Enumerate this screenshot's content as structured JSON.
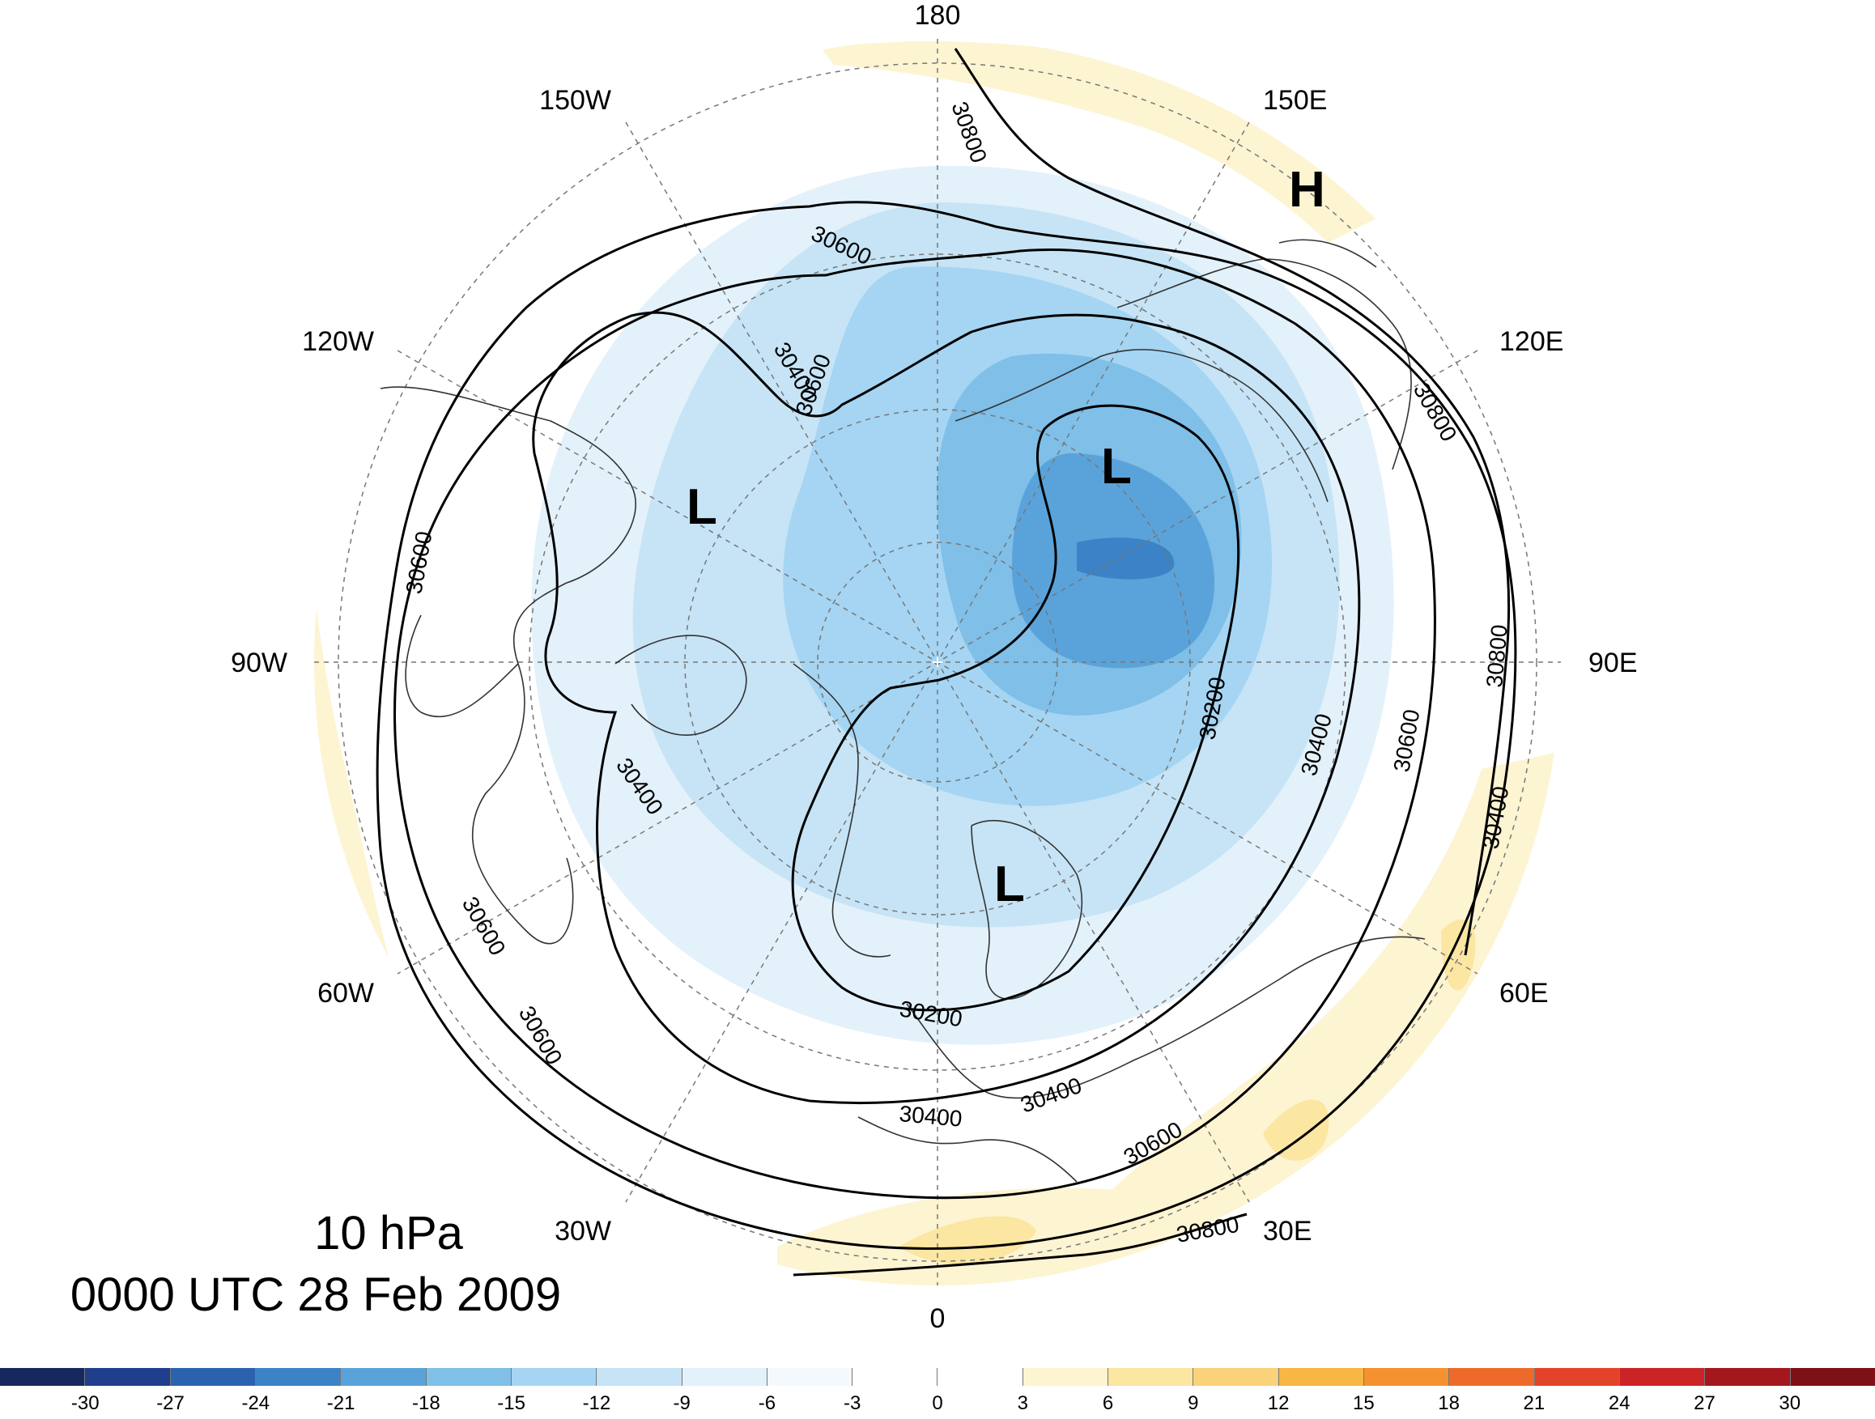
{
  "title": {
    "level": "10 hPa",
    "time": "0000 UTC 28 Feb 2009"
  },
  "longitude_labels": [
    "180",
    "150E",
    "120E",
    "90E",
    "60E",
    "30E",
    "0",
    "30W",
    "60W",
    "90W",
    "120W",
    "150W"
  ],
  "contour_labels": [
    "30800",
    "30600",
    "30400",
    "30400",
    "30600",
    "30600",
    "30400",
    "30200",
    "30400",
    "30600",
    "30800",
    "30200",
    "30400",
    "30600",
    "30800",
    "30400",
    "30600",
    "30800",
    "30600"
  ],
  "pressure_centers": [
    "H",
    "L",
    "L",
    "L"
  ],
  "colorbar": {
    "ticks": [
      "-30",
      "-27",
      "-24",
      "-21",
      "-18",
      "-15",
      "-12",
      "-9",
      "-6",
      "-3",
      "0",
      "3",
      "6",
      "9",
      "12",
      "15",
      "18",
      "21",
      "24",
      "27",
      "30"
    ],
    "colors": [
      "#17285e",
      "#1f3f8c",
      "#2b62b0",
      "#3c82c6",
      "#5aa3da",
      "#7fbfe8",
      "#a5d5f2",
      "#c6e4f6",
      "#e3f1fa",
      "#f4f9fd",
      "#ffffff",
      "#ffffff",
      "#fdf4d2",
      "#fbe6a2",
      "#fad27a",
      "#f8b644",
      "#f59230",
      "#ee6a2a",
      "#e3432a",
      "#cc2327",
      "#a3171d",
      "#7d1115"
    ]
  }
}
